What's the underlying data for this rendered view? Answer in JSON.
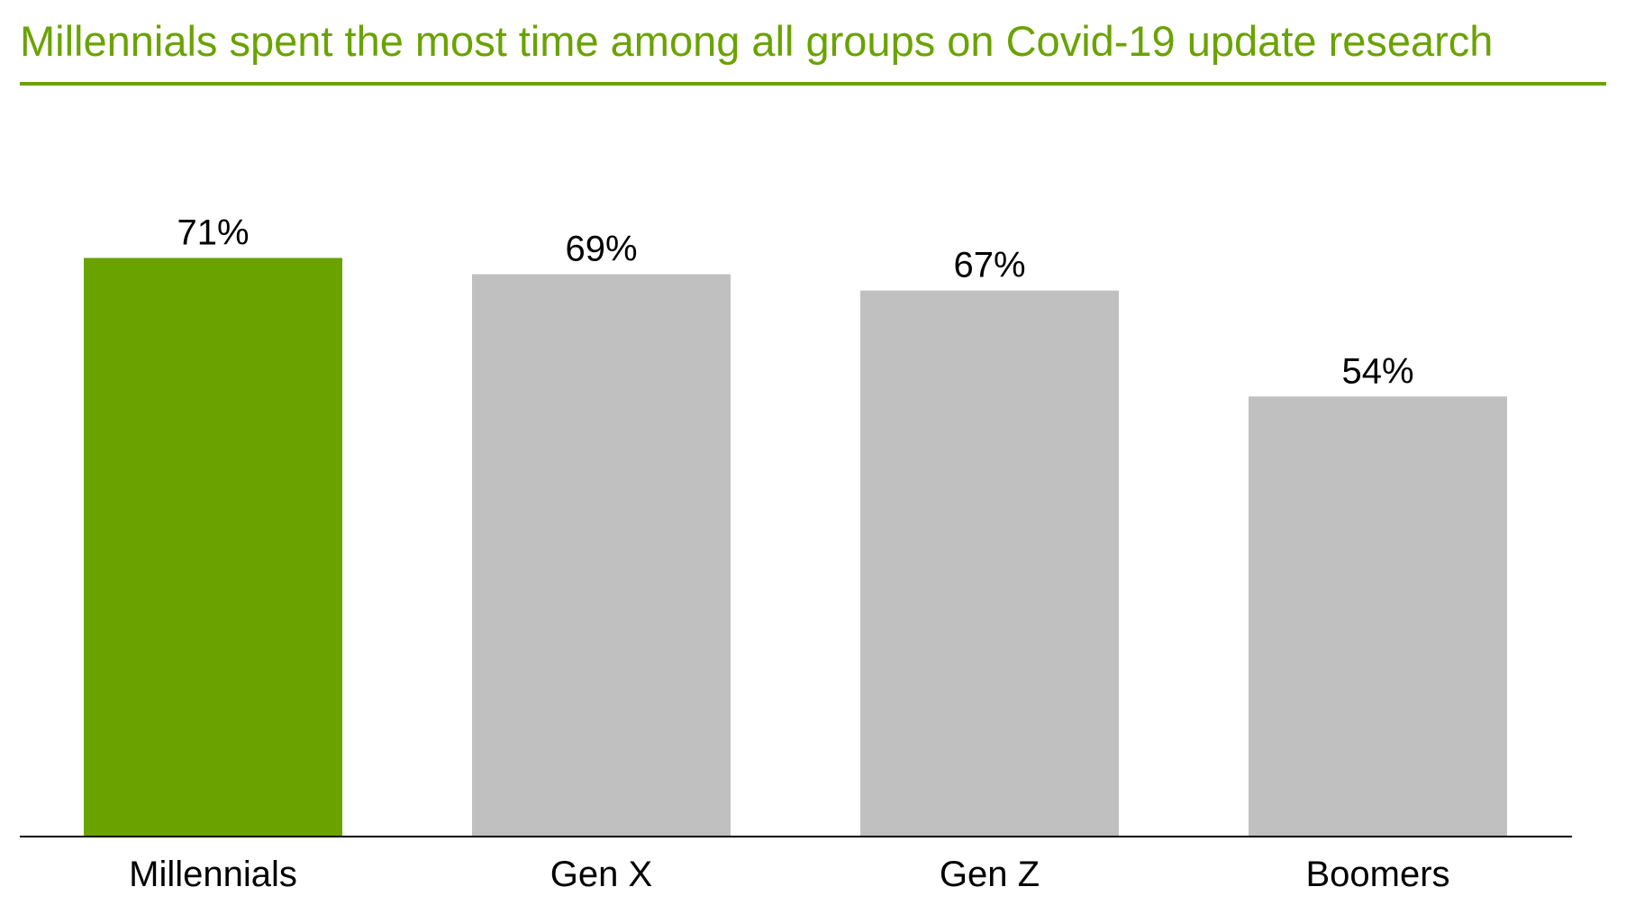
{
  "title": "Millennials spent the most time among all groups on Covid-19 update research",
  "colors": {
    "accent": "#6aa300",
    "highlight_bar": "#6aa300",
    "other_bar": "#c0c0c0",
    "axis": "#000000"
  },
  "chart_data": {
    "type": "bar",
    "title": "Millennials spent the most time among all groups on Covid-19 update research",
    "categories": [
      "Millennials",
      "Gen X",
      "Gen Z",
      "Boomers"
    ],
    "values": [
      71,
      69,
      67,
      54
    ],
    "value_labels": [
      "71%",
      "69%",
      "67%",
      "54%"
    ],
    "highlight_index": 0,
    "xlabel": "",
    "ylabel": "",
    "ylim": [
      0,
      80
    ],
    "grid": false,
    "legend": "none"
  }
}
